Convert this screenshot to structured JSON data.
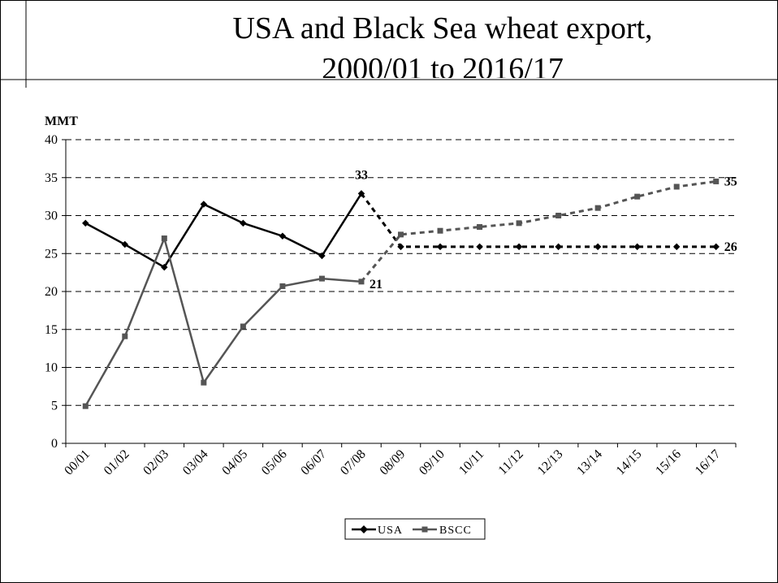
{
  "chart_data": {
    "type": "line",
    "title_line1": "USA and Black Sea wheat export,",
    "title_line2": "2000/01 to 2016/17",
    "ylabel": "MMT",
    "ylim": [
      0,
      40
    ],
    "yticks": [
      "0",
      "5",
      "10",
      "15",
      "20",
      "25",
      "30",
      "35",
      "40"
    ],
    "grid": true,
    "legend_position": "bottom-center",
    "categories": [
      "00/01",
      "01/02",
      "02/03",
      "03/04",
      "04/05",
      "05/06",
      "06/07",
      "07/08",
      "08/09",
      "09/10",
      "10/11",
      "11/12",
      "12/13",
      "13/14",
      "14/15",
      "15/16",
      "16/17"
    ],
    "forecast_start_index": 8,
    "series": [
      {
        "name": "USA",
        "color": "#000000",
        "marker": "diamond",
        "values": [
          29,
          26.2,
          23.2,
          31.5,
          29,
          27.3,
          24.7,
          32.9,
          25.9,
          25.9,
          25.9,
          25.9,
          25.9,
          25.9,
          25.9,
          25.9,
          25.9
        ]
      },
      {
        "name": "BSCC",
        "color": "#555555",
        "marker": "square",
        "values": [
          4.9,
          14.1,
          27,
          8,
          15.4,
          20.7,
          21.7,
          21.3,
          27.5,
          28,
          28.5,
          29,
          30,
          31,
          32.5,
          33.8,
          34.5
        ]
      }
    ],
    "annotations": [
      {
        "text": "33",
        "series": 0,
        "index": 7,
        "position": "above"
      },
      {
        "text": "21",
        "series": 1,
        "index": 7,
        "position": "right"
      },
      {
        "text": "35",
        "series": 1,
        "index": 16,
        "position": "right"
      },
      {
        "text": "26",
        "series": 0,
        "index": 16,
        "position": "right"
      }
    ]
  }
}
